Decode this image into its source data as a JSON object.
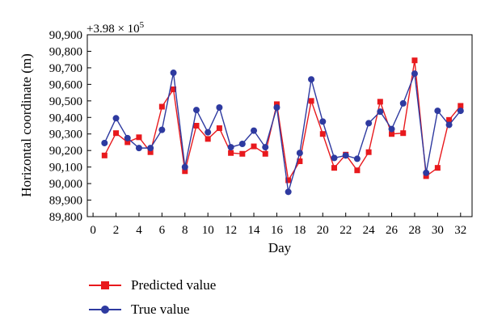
{
  "chart_data": {
    "type": "line",
    "multiplier_prefix": "+3.98 × 10",
    "multiplier_exp": "5",
    "xlabel": "Day",
    "ylabel": "Horizontal coordinate (m)",
    "xlim": [
      -0.5,
      33
    ],
    "ylim": [
      89800,
      90900
    ],
    "xticks": [
      0,
      2,
      4,
      6,
      8,
      10,
      12,
      14,
      16,
      18,
      20,
      22,
      24,
      26,
      28,
      30,
      32
    ],
    "yticks": [
      89800,
      89900,
      90000,
      90100,
      90200,
      90300,
      90400,
      90500,
      90600,
      90700,
      90800,
      90900
    ],
    "ytick_labels": [
      "89,800",
      "89,900",
      "90,000",
      "90,100",
      "90,200",
      "90,300",
      "90,400",
      "90,500",
      "90,600",
      "90,700",
      "90,800",
      "90,900"
    ],
    "x": [
      1,
      2,
      3,
      4,
      5,
      6,
      7,
      8,
      9,
      10,
      11,
      12,
      13,
      14,
      15,
      16,
      17,
      18,
      19,
      20,
      21,
      22,
      23,
      24,
      25,
      26,
      27,
      28,
      29,
      30,
      31,
      32
    ],
    "series": [
      {
        "name": "Predicted value",
        "color": "#e8191d",
        "marker": "square",
        "values": [
          90170,
          90305,
          90250,
          90280,
          90190,
          90465,
          90570,
          90075,
          90350,
          90270,
          90335,
          90185,
          90180,
          90225,
          90180,
          90480,
          90020,
          90135,
          90500,
          90300,
          90095,
          90175,
          90080,
          90190,
          90495,
          90300,
          90305,
          90745,
          90045,
          90095,
          90385,
          90470
        ]
      },
      {
        "name": "True value",
        "color": "#2e3aa0",
        "marker": "circle",
        "values": [
          90245,
          90395,
          90275,
          90215,
          90215,
          90325,
          90670,
          90100,
          90445,
          90310,
          90460,
          90220,
          90240,
          90320,
          90220,
          90460,
          89950,
          90185,
          90630,
          90375,
          90155,
          90170,
          90150,
          90365,
          90435,
          90330,
          90485,
          90665,
          90065,
          90440,
          90355,
          90440
        ]
      }
    ],
    "grid": false,
    "legend_position": "below"
  }
}
